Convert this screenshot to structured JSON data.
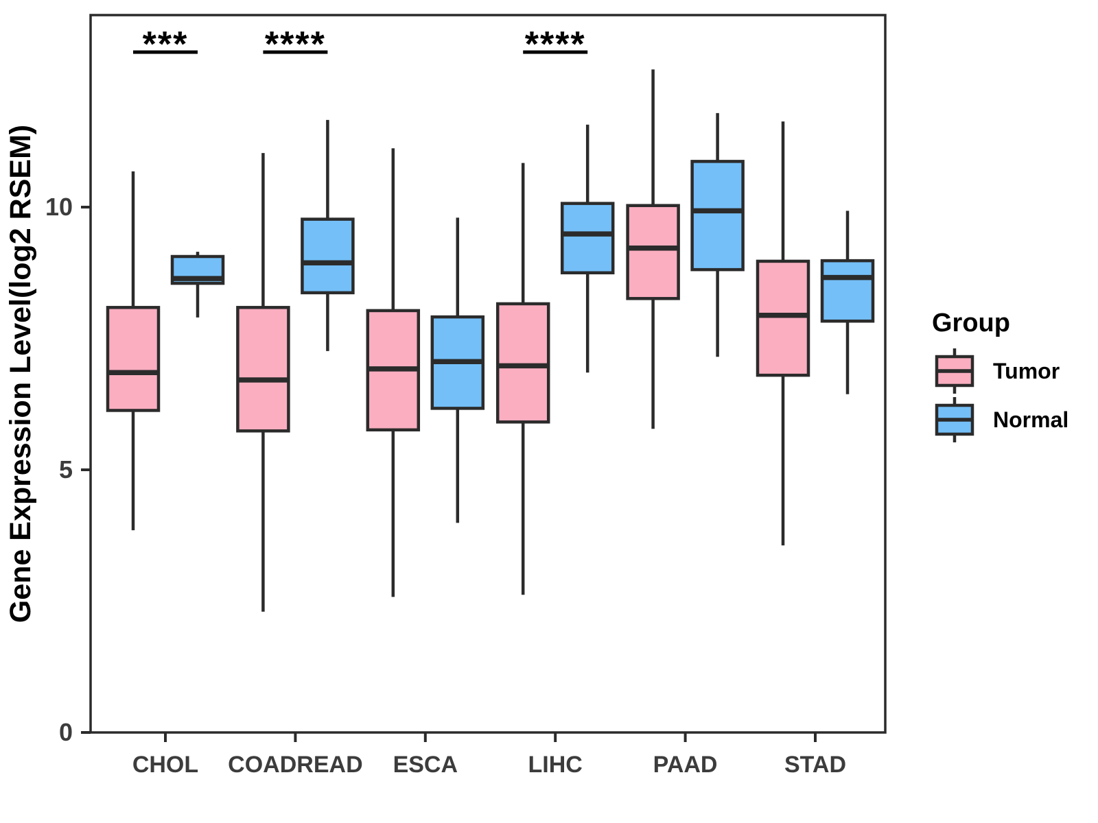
{
  "chart_data": {
    "type": "boxplot",
    "title": "",
    "xlabel": "",
    "ylabel": "Gene Expression Level(log2 RSEM)",
    "categories": [
      "CHOL",
      "COADREAD",
      "ESCA",
      "LIHC",
      "PAAD",
      "STAD"
    ],
    "yticks": [
      "0",
      "5",
      "10"
    ],
    "ylim": [
      0,
      13.66
    ],
    "grid": false,
    "colors": {
      "tumor_fill": "#FAAEC0",
      "normal_fill": "#74BFF8",
      "outline": "#2B2B2B",
      "tick_label": "#3C3C3C",
      "axis_title": "#000000"
    },
    "legend": {
      "title": "Group",
      "position": "right",
      "entries": [
        {
          "label": "Tumor",
          "color": "#FAAEC0"
        },
        {
          "label": "Normal",
          "color": "#74BFF8"
        }
      ]
    },
    "series": [
      {
        "name": "Tumor",
        "color": "#FAAEC0",
        "boxes": [
          {
            "category": "CHOL",
            "min": 3.85,
            "q1": 6.13,
            "median": 6.85,
            "q3": 8.09,
            "max": 10.68
          },
          {
            "category": "COADREAD",
            "min": 2.3,
            "q1": 5.74,
            "median": 6.71,
            "q3": 8.09,
            "max": 11.03
          },
          {
            "category": "ESCA",
            "min": 2.58,
            "q1": 5.76,
            "median": 6.92,
            "q3": 8.03,
            "max": 11.12
          },
          {
            "category": "LIHC",
            "min": 2.62,
            "q1": 5.91,
            "median": 6.98,
            "q3": 8.16,
            "max": 10.84
          },
          {
            "category": "PAAD",
            "min": 5.78,
            "q1": 8.26,
            "median": 9.22,
            "q3": 10.03,
            "max": 12.62
          },
          {
            "category": "STAD",
            "min": 3.56,
            "q1": 6.8,
            "median": 7.94,
            "q3": 8.97,
            "max": 11.63
          }
        ]
      },
      {
        "name": "Normal",
        "color": "#74BFF8",
        "boxes": [
          {
            "category": "CHOL",
            "min": 7.9,
            "q1": 8.55,
            "median": 8.64,
            "q3": 9.06,
            "max": 9.15
          },
          {
            "category": "COADREAD",
            "min": 7.26,
            "q1": 8.37,
            "median": 8.94,
            "q3": 9.77,
            "max": 11.66
          },
          {
            "category": "ESCA",
            "min": 3.99,
            "q1": 6.17,
            "median": 7.06,
            "q3": 7.91,
            "max": 9.8
          },
          {
            "category": "LIHC",
            "min": 6.85,
            "q1": 8.75,
            "median": 9.49,
            "q3": 10.07,
            "max": 11.57
          },
          {
            "category": "PAAD",
            "min": 7.15,
            "q1": 8.81,
            "median": 9.93,
            "q3": 10.87,
            "max": 11.79
          },
          {
            "category": "STAD",
            "min": 6.44,
            "q1": 7.83,
            "median": 8.66,
            "q3": 8.98,
            "max": 9.93
          }
        ]
      }
    ],
    "significance": [
      {
        "category": "CHOL",
        "label": "***"
      },
      {
        "category": "COADREAD",
        "label": "****"
      },
      {
        "category": "LIHC",
        "label": "****"
      }
    ]
  }
}
